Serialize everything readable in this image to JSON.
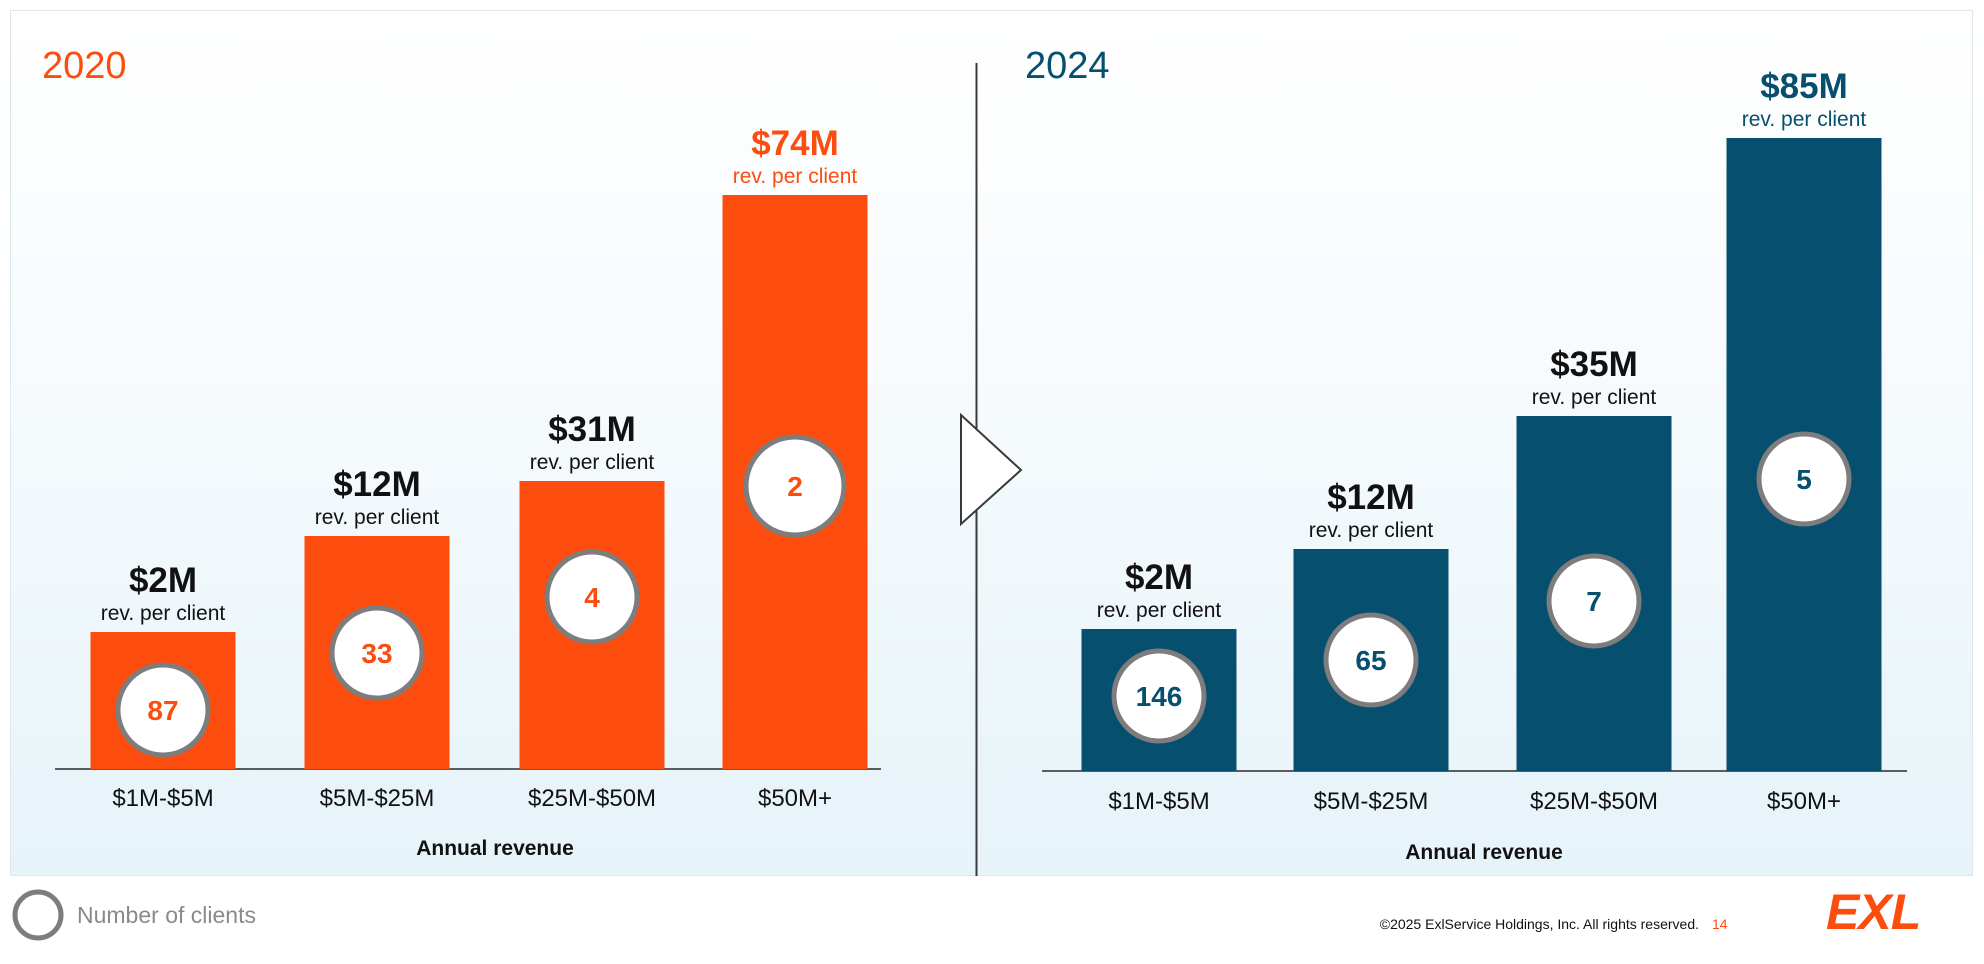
{
  "colors": {
    "orange": "#fc4d0f",
    "navy": "#064f6e",
    "circle_ring": "#7d7d7d",
    "text": "#111111"
  },
  "chart_data": [
    {
      "type": "bar",
      "title": "2020",
      "xlabel": "Annual revenue",
      "ylabel": "",
      "categories": [
        "$1M-$5M",
        "$5M-$25M",
        "$25M-$50M",
        "$50M+"
      ],
      "values": [
        2,
        12,
        31,
        74
      ],
      "value_labels": [
        "$2M",
        "$12M",
        "$31M",
        "$74M"
      ],
      "value_sublabel": "rev. per client",
      "clients": [
        "87",
        "33",
        "4",
        "2"
      ],
      "color": "#fc4d0f"
    },
    {
      "type": "bar",
      "title": "2024",
      "xlabel": "Annual revenue",
      "ylabel": "",
      "categories": [
        "$1M-$5M",
        "$5M-$25M",
        "$25M-$50M",
        "$50M+"
      ],
      "values": [
        2,
        12,
        35,
        85
      ],
      "value_labels": [
        "$2M",
        "$12M",
        "$35M",
        "$85M"
      ],
      "value_sublabel": "rev. per client",
      "clients": [
        "146",
        "65",
        "7",
        "5"
      ],
      "color": "#064f6e"
    }
  ],
  "legend": {
    "label": "Number of clients"
  },
  "footer": {
    "copyright": "©2025 ExlService Holdings, Inc. All rights reserved.",
    "page_number": "14",
    "logo": "EXL"
  }
}
